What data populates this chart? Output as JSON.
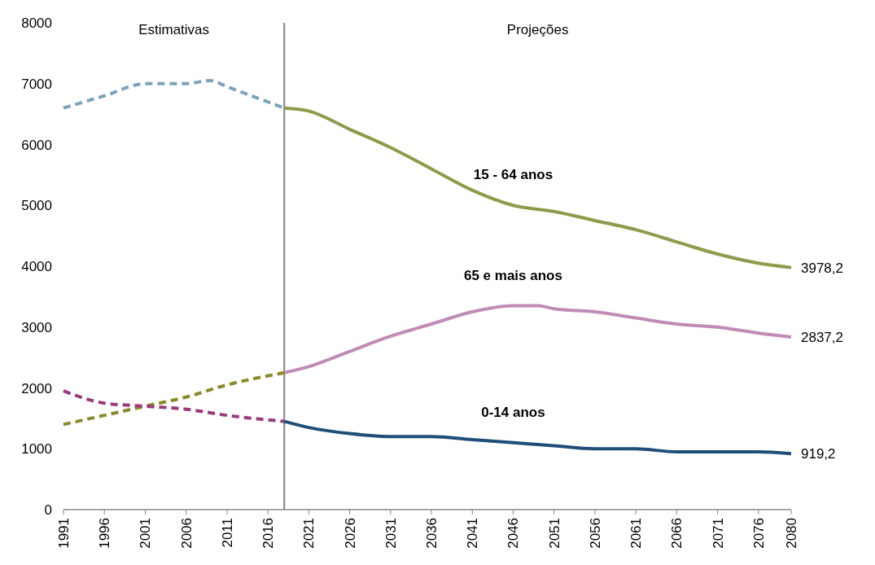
{
  "chart_data": {
    "type": "line",
    "xlim": [
      1991,
      2080
    ],
    "ylim": [
      0,
      8000
    ],
    "xticks": [
      1991,
      1996,
      2001,
      2006,
      2011,
      2016,
      2021,
      2026,
      2031,
      2036,
      2041,
      2046,
      2051,
      2056,
      2061,
      2066,
      2071,
      2076,
      2080
    ],
    "yticks": [
      0,
      1000,
      2000,
      3000,
      4000,
      5000,
      6000,
      7000,
      8000
    ],
    "grid": false,
    "marker": "none",
    "ref_lines": [
      {
        "axis": "x",
        "value": 2018,
        "color": "#808080"
      }
    ],
    "annotations": [
      "Estimativas",
      "Projeções"
    ],
    "series": [
      {
        "color": "#7ba3bb",
        "line_style": "dashed",
        "x": [
          1991,
          1996,
          2001,
          2006,
          2009,
          2011,
          2014,
          2018
        ],
        "values": [
          6600,
          6800,
          7000,
          7000,
          7050,
          6950,
          6800,
          6600
        ]
      },
      {
        "color": "#8a8a2a",
        "line_style": "dashed",
        "x": [
          1991,
          1996,
          2001,
          2006,
          2011,
          2018
        ],
        "values": [
          1400,
          1550,
          1700,
          1850,
          2050,
          2250
        ]
      },
      {
        "color": "#9b3a7a",
        "line_style": "dashed",
        "x": [
          1991,
          1996,
          2001,
          2006,
          2011,
          2018
        ],
        "values": [
          1950,
          1750,
          1700,
          1650,
          1550,
          1450
        ]
      },
      {
        "name": "15 - 64 anos",
        "color": "#8f9a4a",
        "line_style": "solid",
        "x": [
          2018,
          2021,
          2026,
          2031,
          2036,
          2041,
          2046,
          2051,
          2056,
          2061,
          2066,
          2071,
          2076,
          2080
        ],
        "values": [
          6600,
          6550,
          6250,
          5950,
          5600,
          5250,
          5000,
          4900,
          4750,
          4600,
          4400,
          4200,
          4050,
          3978.2
        ],
        "value_labels": [
          null,
          null,
          null,
          null,
          null,
          null,
          null,
          null,
          null,
          null,
          null,
          null,
          null,
          "3978,2"
        ]
      },
      {
        "name": "65 e mais anos",
        "color": "#c08bb5",
        "line_style": "solid",
        "x": [
          2018,
          2021,
          2026,
          2031,
          2036,
          2041,
          2046,
          2049,
          2051,
          2056,
          2061,
          2066,
          2071,
          2076,
          2080
        ],
        "values": [
          2250,
          2350,
          2600,
          2850,
          3050,
          3250,
          3350,
          3350,
          3300,
          3250,
          3150,
          3050,
          3000,
          2900,
          2837.2
        ],
        "value_labels": [
          null,
          null,
          null,
          null,
          null,
          null,
          null,
          null,
          null,
          null,
          null,
          null,
          null,
          null,
          "2837,2"
        ]
      },
      {
        "name": "0-14 anos",
        "color": "#1f4e79",
        "line_style": "solid",
        "x": [
          2018,
          2021,
          2026,
          2031,
          2036,
          2041,
          2046,
          2051,
          2056,
          2061,
          2066,
          2071,
          2076,
          2080
        ],
        "values": [
          1450,
          1350,
          1250,
          1200,
          1200,
          1150,
          1100,
          1050,
          1000,
          1000,
          950,
          950,
          950,
          919.2
        ],
        "value_labels": [
          null,
          null,
          null,
          null,
          null,
          null,
          null,
          null,
          null,
          null,
          null,
          null,
          null,
          "919,2"
        ]
      }
    ]
  }
}
